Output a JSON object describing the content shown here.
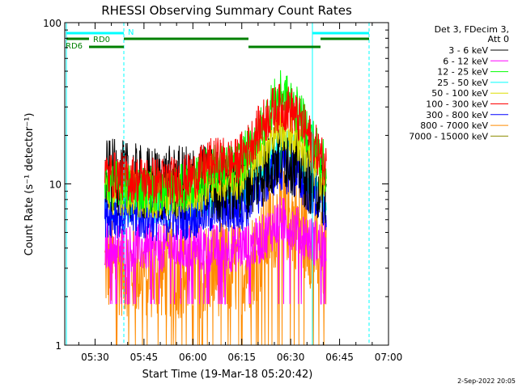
{
  "chart_data": {
    "type": "line",
    "title": "RHESSI Observing Summary Count Rates",
    "xlabel": "Start Time (19-Mar-18 05:20:42)",
    "ylabel": "Count Rate (s⁻¹ detector⁻¹)",
    "y_scale": "log",
    "ylim": [
      1,
      100
    ],
    "x_range_minutes": [
      "05:20:42",
      "07:00"
    ],
    "x_ticks": [
      "05:30",
      "05:45",
      "06:00",
      "06:15",
      "06:30",
      "06:45",
      "07:00"
    ],
    "y_ticks": [
      "1",
      "10",
      "100"
    ],
    "legend_header": [
      "Det 3, FDecim 3,",
      "Att 0"
    ],
    "legend_position": "right",
    "series": [
      {
        "name": "3 - 6 keV",
        "color": "#000000",
        "x": [
          "05:33",
          "05:37",
          "05:41",
          "05:45",
          "05:49",
          "05:53",
          "05:57",
          "06:01",
          "06:05",
          "06:09",
          "06:13",
          "06:17",
          "06:21",
          "06:24",
          "06:27",
          "06:30",
          "06:33",
          "06:36",
          "06:39",
          "06:41"
        ],
        "values": [
          11,
          11,
          10.5,
          10,
          10,
          10,
          10,
          10.5,
          10,
          10,
          10,
          10.5,
          12,
          14,
          16,
          15,
          13,
          11,
          10,
          9
        ]
      },
      {
        "name": "6 - 12 keV",
        "color": "#ff00ff",
        "x": [
          "05:33",
          "05:37",
          "05:41",
          "05:45",
          "05:49",
          "05:53",
          "05:57",
          "06:01",
          "06:05",
          "06:09",
          "06:13",
          "06:17",
          "06:21",
          "06:24",
          "06:27",
          "06:30",
          "06:33",
          "06:36",
          "06:39",
          "06:41"
        ],
        "values": [
          4.2,
          4.1,
          4,
          4,
          4,
          4,
          4,
          4,
          4,
          4,
          4,
          4.1,
          4.5,
          5.3,
          6,
          5.6,
          5,
          4.5,
          4.2,
          4
        ]
      },
      {
        "name": "12 - 25 keV",
        "color": "#00ff00",
        "x": [
          "05:33",
          "05:37",
          "05:41",
          "05:45",
          "05:49",
          "05:53",
          "05:57",
          "06:01",
          "06:05",
          "06:09",
          "06:13",
          "06:17",
          "06:21",
          "06:24",
          "06:27",
          "06:30",
          "06:33",
          "06:36",
          "06:39",
          "06:41"
        ],
        "values": [
          10.5,
          10,
          9.6,
          9.4,
          9.3,
          9.3,
          9.4,
          10.3,
          12.5,
          12.5,
          12.5,
          16,
          22,
          30,
          36,
          33,
          26,
          20,
          15,
          12
        ]
      },
      {
        "name": "25 - 50 keV",
        "color": "#00ffff",
        "x": [
          "05:33",
          "05:37",
          "05:41",
          "05:45",
          "05:49",
          "05:53",
          "05:57",
          "06:01",
          "06:05",
          "06:09",
          "06:13",
          "06:17",
          "06:21",
          "06:24",
          "06:27",
          "06:30",
          "06:33",
          "06:36",
          "06:39",
          "06:41"
        ],
        "values": [
          8.2,
          8,
          7.9,
          7.8,
          7.7,
          7.7,
          7.8,
          8,
          8.5,
          8.7,
          8.5,
          9.5,
          12,
          14.5,
          16,
          15,
          13,
          11,
          9,
          8
        ]
      },
      {
        "name": "50 - 100 keV",
        "color": "#dddd00",
        "x": [
          "05:33",
          "05:37",
          "05:41",
          "05:45",
          "05:49",
          "05:53",
          "05:57",
          "06:01",
          "06:05",
          "06:09",
          "06:13",
          "06:17",
          "06:21",
          "06:24",
          "06:27",
          "06:30",
          "06:33",
          "06:36",
          "06:39",
          "06:41"
        ],
        "values": [
          9.2,
          9,
          8.8,
          8.6,
          8.5,
          8.5,
          8.6,
          9,
          10.5,
          11,
          11,
          13,
          16.5,
          20,
          22.5,
          21,
          18,
          14.5,
          11.5,
          9.5
        ]
      },
      {
        "name": "100 - 300 keV",
        "color": "#ff0000",
        "x": [
          "05:33",
          "05:37",
          "05:41",
          "05:45",
          "05:49",
          "05:53",
          "05:57",
          "06:01",
          "06:05",
          "06:09",
          "06:13",
          "06:17",
          "06:21",
          "06:24",
          "06:27",
          "06:30",
          "06:33",
          "06:36",
          "06:39",
          "06:41"
        ],
        "values": [
          11.5,
          11.2,
          10.8,
          10.6,
          10.5,
          10.5,
          10.6,
          11.5,
          13.5,
          14,
          13.5,
          17,
          23,
          28,
          30,
          29,
          24,
          19,
          15,
          12.5
        ]
      },
      {
        "name": "300 - 800 keV",
        "color": "#0000ff",
        "x": [
          "05:33",
          "05:37",
          "05:41",
          "05:45",
          "05:49",
          "05:53",
          "05:57",
          "06:01",
          "06:05",
          "06:09",
          "06:13",
          "06:17",
          "06:21",
          "06:24",
          "06:27",
          "06:30",
          "06:33",
          "06:36",
          "06:39",
          "06:41"
        ],
        "values": [
          6.6,
          6.5,
          6.4,
          6.3,
          6.2,
          6.2,
          6.3,
          6.5,
          6.8,
          7,
          6.8,
          7.6,
          9.5,
          11.5,
          12.5,
          12,
          10.5,
          9,
          7.5,
          6.6
        ]
      },
      {
        "name": "800 - 7000 keV",
        "color": "#ff8c00",
        "x": [
          "05:33",
          "05:37",
          "05:41",
          "05:45",
          "05:49",
          "05:53",
          "05:57",
          "06:01",
          "06:05",
          "06:09",
          "06:13",
          "06:17",
          "06:21",
          "06:24",
          "06:27",
          "06:30",
          "06:33",
          "06:36",
          "06:39",
          "06:41"
        ],
        "values": [
          3.1,
          3,
          3,
          2.9,
          2.9,
          2.9,
          2.9,
          2.9,
          3,
          3,
          3,
          3.2,
          4,
          5.5,
          6.5,
          6.3,
          5.5,
          4.5,
          3.6,
          3.1
        ]
      },
      {
        "name": "7000 - 15000 keV",
        "color": "#8b8b00",
        "x": [],
        "values": []
      }
    ]
  },
  "annotations": {
    "n_label": "N",
    "rd0_label": "RD0",
    "rd6_label": "RD6",
    "timestamp": "2-Sep-2022 20:05"
  },
  "colors": {
    "title": "#000000",
    "axes": "#000000",
    "night_marker": "#00ffff",
    "rd_bars": "#008000"
  }
}
